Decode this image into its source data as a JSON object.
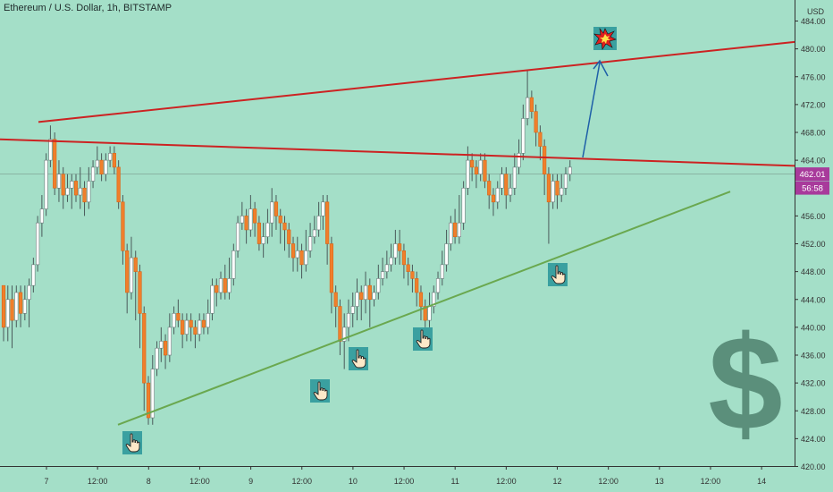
{
  "header": {
    "symbol": "Ethereum / U.S. Dollar",
    "interval": "1h",
    "exchange": "BITSTAMP",
    "currency": "USD"
  },
  "price_tags": {
    "last_price": "462.01",
    "countdown": "56:58",
    "color": "#a83a9b"
  },
  "colors": {
    "background": "#a4dfc8",
    "bull_body": "#ffffff",
    "bear_body": "#f07f2b",
    "wick": "#4a5a5a",
    "resistance": "#cc2222",
    "support": "#6aa84f",
    "arrow": "#1e5fa8",
    "dollar": "#5b8f7b"
  },
  "icons": [
    "pointing-hand-icon",
    "explosion-icon",
    "dollar-sign-icon"
  ],
  "chart_data": {
    "type": "candlestick",
    "y_ticks": [
      "420.00",
      "424.00",
      "428.00",
      "432.00",
      "436.00",
      "440.00",
      "444.00",
      "448.00",
      "452.00",
      "456.00",
      "460.00",
      "464.00",
      "468.00",
      "472.00",
      "476.00",
      "480.00",
      "484.00"
    ],
    "ylim": [
      420,
      484
    ],
    "x_ticks": [
      "7",
      "12:00",
      "8",
      "12:00",
      "9",
      "12:00",
      "10",
      "12:00",
      "11",
      "12:00",
      "12",
      "12:00",
      "13",
      "12:00",
      "14"
    ],
    "candles": [
      [
        446,
        440,
        446,
        438
      ],
      [
        440,
        444,
        446,
        438
      ],
      [
        444,
        441,
        446,
        437
      ],
      [
        441,
        445,
        446,
        440
      ],
      [
        445,
        442,
        446,
        440
      ],
      [
        442,
        444,
        446,
        441
      ],
      [
        444,
        446,
        447,
        440
      ],
      [
        446,
        449,
        450,
        445
      ],
      [
        449,
        455,
        456,
        448
      ],
      [
        455,
        457,
        459,
        453
      ],
      [
        457,
        464,
        465,
        456
      ],
      [
        464,
        467,
        469,
        463
      ],
      [
        467,
        460,
        468,
        459
      ],
      [
        460,
        462,
        464,
        458
      ],
      [
        462,
        459,
        463,
        457
      ],
      [
        459,
        460,
        462,
        458
      ],
      [
        460,
        461,
        462,
        457
      ],
      [
        461,
        459,
        462,
        458
      ],
      [
        459,
        460,
        463,
        457
      ],
      [
        460,
        458,
        461,
        456
      ],
      [
        458,
        461,
        463,
        457
      ],
      [
        461,
        463,
        464,
        460
      ],
      [
        463,
        464,
        466,
        462
      ],
      [
        464,
        462,
        465,
        461
      ],
      [
        462,
        464,
        465,
        461
      ],
      [
        464,
        465,
        466,
        463
      ],
      [
        465,
        463,
        466,
        462
      ],
      [
        463,
        458,
        464,
        457
      ],
      [
        458,
        451,
        459,
        449
      ],
      [
        451,
        445,
        452,
        442
      ],
      [
        445,
        450,
        453,
        444
      ],
      [
        450,
        448,
        451,
        441
      ],
      [
        448,
        442,
        449,
        437
      ],
      [
        442,
        432,
        443,
        428
      ],
      [
        432,
        427,
        433,
        426
      ],
      [
        427,
        434,
        436,
        426
      ],
      [
        434,
        437,
        438,
        433
      ],
      [
        437,
        438,
        440,
        435
      ],
      [
        438,
        436,
        439,
        434
      ],
      [
        436,
        440,
        442,
        435
      ],
      [
        440,
        442,
        443,
        439
      ],
      [
        442,
        441,
        444,
        440
      ],
      [
        441,
        439,
        442,
        437
      ],
      [
        439,
        441,
        442,
        438
      ],
      [
        441,
        440,
        442,
        438
      ],
      [
        440,
        439,
        441,
        437
      ],
      [
        439,
        441,
        442,
        438
      ],
      [
        441,
        440,
        442,
        439
      ],
      [
        440,
        442,
        444,
        439
      ],
      [
        442,
        446,
        447,
        441
      ],
      [
        446,
        445,
        447,
        443
      ],
      [
        445,
        447,
        448,
        444
      ],
      [
        447,
        445,
        449,
        444
      ],
      [
        445,
        447,
        450,
        444
      ],
      [
        447,
        451,
        452,
        446
      ],
      [
        451,
        455,
        456,
        450
      ],
      [
        455,
        456,
        458,
        454
      ],
      [
        456,
        454,
        457,
        452
      ],
      [
        454,
        457,
        459,
        453
      ],
      [
        457,
        455,
        458,
        453
      ],
      [
        455,
        452,
        456,
        451
      ],
      [
        452,
        453,
        455,
        450
      ],
      [
        453,
        455,
        457,
        452
      ],
      [
        455,
        458,
        460,
        453
      ],
      [
        458,
        456,
        459,
        454
      ],
      [
        456,
        455,
        457,
        452
      ],
      [
        455,
        454,
        456,
        451
      ],
      [
        454,
        452,
        455,
        450
      ],
      [
        452,
        450,
        453,
        448
      ],
      [
        450,
        451,
        453,
        448
      ],
      [
        451,
        449,
        452,
        447
      ],
      [
        449,
        451,
        454,
        448
      ],
      [
        451,
        453,
        455,
        450
      ],
      [
        453,
        454,
        456,
        452
      ],
      [
        454,
        456,
        458,
        453
      ],
      [
        456,
        458,
        459,
        454
      ],
      [
        458,
        452,
        459,
        449
      ],
      [
        452,
        445,
        453,
        442
      ],
      [
        445,
        443,
        446,
        440
      ],
      [
        443,
        438,
        444,
        436
      ],
      [
        438,
        440,
        442,
        434
      ],
      [
        440,
        442,
        444,
        438
      ],
      [
        442,
        443,
        445,
        440
      ],
      [
        443,
        445,
        447,
        441
      ],
      [
        445,
        444,
        446,
        441
      ],
      [
        444,
        446,
        448,
        442
      ],
      [
        446,
        444,
        447,
        440
      ],
      [
        444,
        445,
        446,
        443
      ],
      [
        445,
        447,
        449,
        444
      ],
      [
        447,
        448,
        450,
        446
      ],
      [
        448,
        449,
        451,
        447
      ],
      [
        449,
        450,
        452,
        448
      ],
      [
        450,
        452,
        454,
        449
      ],
      [
        452,
        451,
        454,
        449
      ],
      [
        451,
        449,
        452,
        447
      ],
      [
        449,
        448,
        450,
        446
      ],
      [
        448,
        447,
        449,
        445
      ],
      [
        447,
        445,
        448,
        443
      ],
      [
        445,
        443,
        446,
        441
      ],
      [
        443,
        441,
        444,
        440
      ],
      [
        441,
        443,
        445,
        440
      ],
      [
        443,
        445,
        446,
        442
      ],
      [
        445,
        447,
        448,
        444
      ],
      [
        447,
        449,
        451,
        446
      ],
      [
        449,
        452,
        454,
        448
      ],
      [
        452,
        455,
        456,
        451
      ],
      [
        455,
        453,
        457,
        452
      ],
      [
        453,
        455,
        459,
        452
      ],
      [
        455,
        460,
        461,
        454
      ],
      [
        460,
        464,
        466,
        459
      ],
      [
        464,
        463,
        465,
        461
      ],
      [
        463,
        462,
        464,
        460
      ],
      [
        462,
        464,
        465,
        461
      ],
      [
        464,
        461,
        465,
        460
      ],
      [
        461,
        459,
        462,
        457
      ],
      [
        459,
        458,
        460,
        456
      ],
      [
        458,
        460,
        461,
        457
      ],
      [
        460,
        462,
        463,
        459
      ],
      [
        462,
        459,
        463,
        457
      ],
      [
        459,
        460,
        462,
        458
      ],
      [
        460,
        463,
        465,
        459
      ],
      [
        463,
        465,
        467,
        462
      ],
      [
        465,
        470,
        472,
        464
      ],
      [
        470,
        473,
        477,
        469
      ],
      [
        473,
        471,
        474,
        470
      ],
      [
        471,
        468,
        472,
        466
      ],
      [
        468,
        466,
        469,
        464
      ],
      [
        466,
        462,
        467,
        459
      ],
      [
        462,
        458,
        463,
        452
      ],
      [
        458,
        461,
        462,
        457
      ],
      [
        461,
        459,
        462,
        457
      ],
      [
        459,
        460,
        462,
        458
      ],
      [
        460,
        462,
        463,
        459
      ],
      [
        462,
        463,
        464,
        461
      ]
    ],
    "lines": [
      {
        "name": "",
        "from": [
          "7",
          469.5
        ],
        "to": [
          "13+",
          481.0
        ]
      },
      {
        "name": "",
        "from": [
          "start",
          467.0
        ],
        "to": [
          "end",
          463.2
        ]
      },
      {
        "name": "",
        "from": [
          "8-",
          426.0
        ],
        "to": [
          "12:00 13",
          459.5
        ]
      }
    ]
  }
}
